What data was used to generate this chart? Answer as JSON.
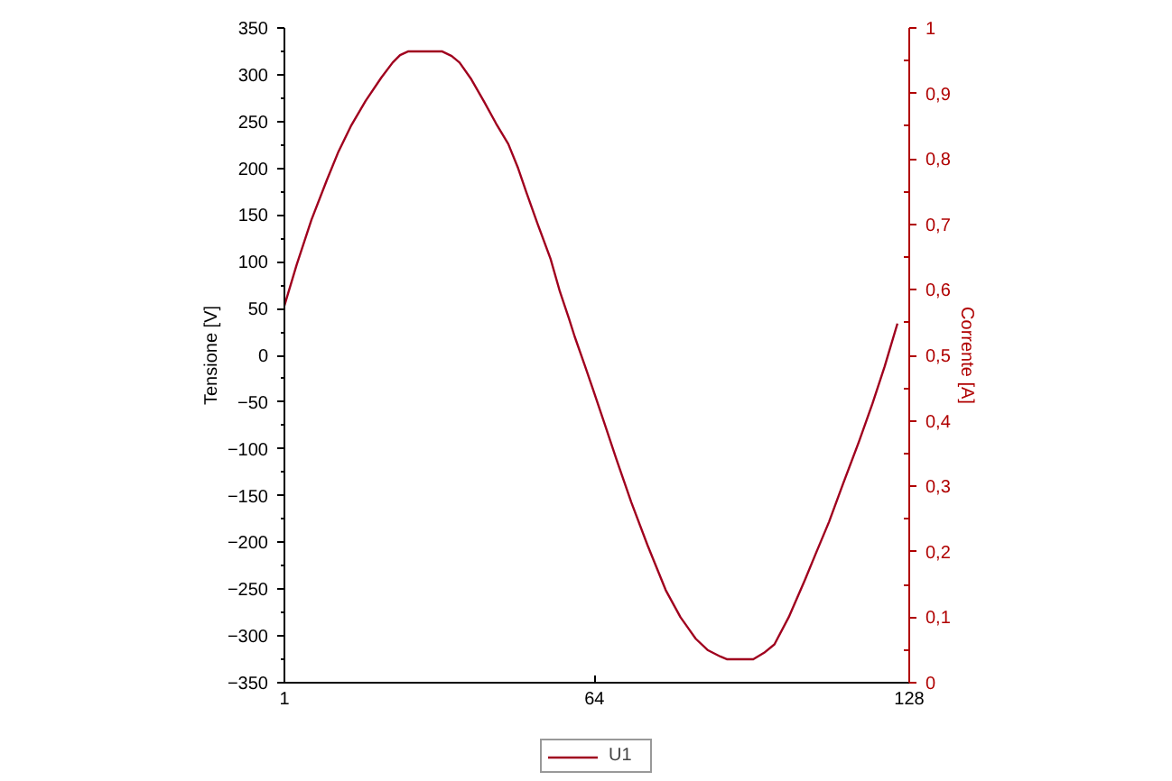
{
  "chart_data": {
    "type": "line",
    "ylabel": "Tensione [V]",
    "y2label": "Corrente [A]",
    "x": [
      1,
      3.5,
      6.5,
      9.6,
      12,
      14.5,
      17.5,
      20.7,
      23,
      24.5,
      26.2,
      33,
      35,
      36.6,
      39,
      41.6,
      44,
      46.5,
      48.5,
      50.2,
      52.5,
      55.1,
      57,
      58.8,
      60,
      62,
      63.7,
      66,
      68.6,
      71.5,
      74.8,
      78.5,
      81.5,
      84.6,
      87,
      89.6,
      91,
      96.3,
      98.5,
      100.6,
      103.5,
      106.8,
      109,
      111.7,
      114.5,
      117.8,
      120.5,
      123,
      125.6
    ],
    "series": [
      {
        "name": "U1",
        "color": "#a0001e",
        "values": [
          53,
          97,
          145,
          187,
          218,
          245,
          272,
          297,
          313,
          321,
          325,
          325,
          320,
          313,
          295,
          271,
          248,
          226,
          200,
          174,
          140,
          103,
          68,
          40,
          20,
          -10,
          -36,
          -72,
          -113,
          -157,
          -203,
          -251,
          -280,
          -303,
          -315,
          -322,
          -325,
          -325,
          -318,
          -309,
          -280,
          -240,
          -212,
          -178,
          -138,
          -92,
          -52,
          -12,
          34
        ]
      }
    ],
    "xlim": [
      1,
      128
    ],
    "xticks": [
      1,
      64,
      128
    ],
    "ylim": [
      -350,
      350
    ],
    "yticks": [
      -350,
      -300,
      -250,
      -200,
      -150,
      -100,
      -50,
      0,
      50,
      100,
      150,
      200,
      250,
      300,
      350
    ],
    "y2lim": [
      0,
      1
    ],
    "y2ticks": [
      0,
      {
        "value": 0.1,
        "label": "0,1"
      },
      {
        "value": 0.2,
        "label": "0,2"
      },
      {
        "value": 0.3,
        "label": "0,3"
      },
      {
        "value": 0.4,
        "label": "0,4"
      },
      {
        "value": 0.5,
        "label": "0,5"
      },
      {
        "value": 0.6,
        "label": "0,6"
      },
      {
        "value": 0.7,
        "label": "0,7"
      },
      {
        "value": 0.8,
        "label": "0,8"
      },
      {
        "value": 0.9,
        "label": "0,9"
      },
      1
    ],
    "grid": false,
    "legend": "bottom"
  }
}
